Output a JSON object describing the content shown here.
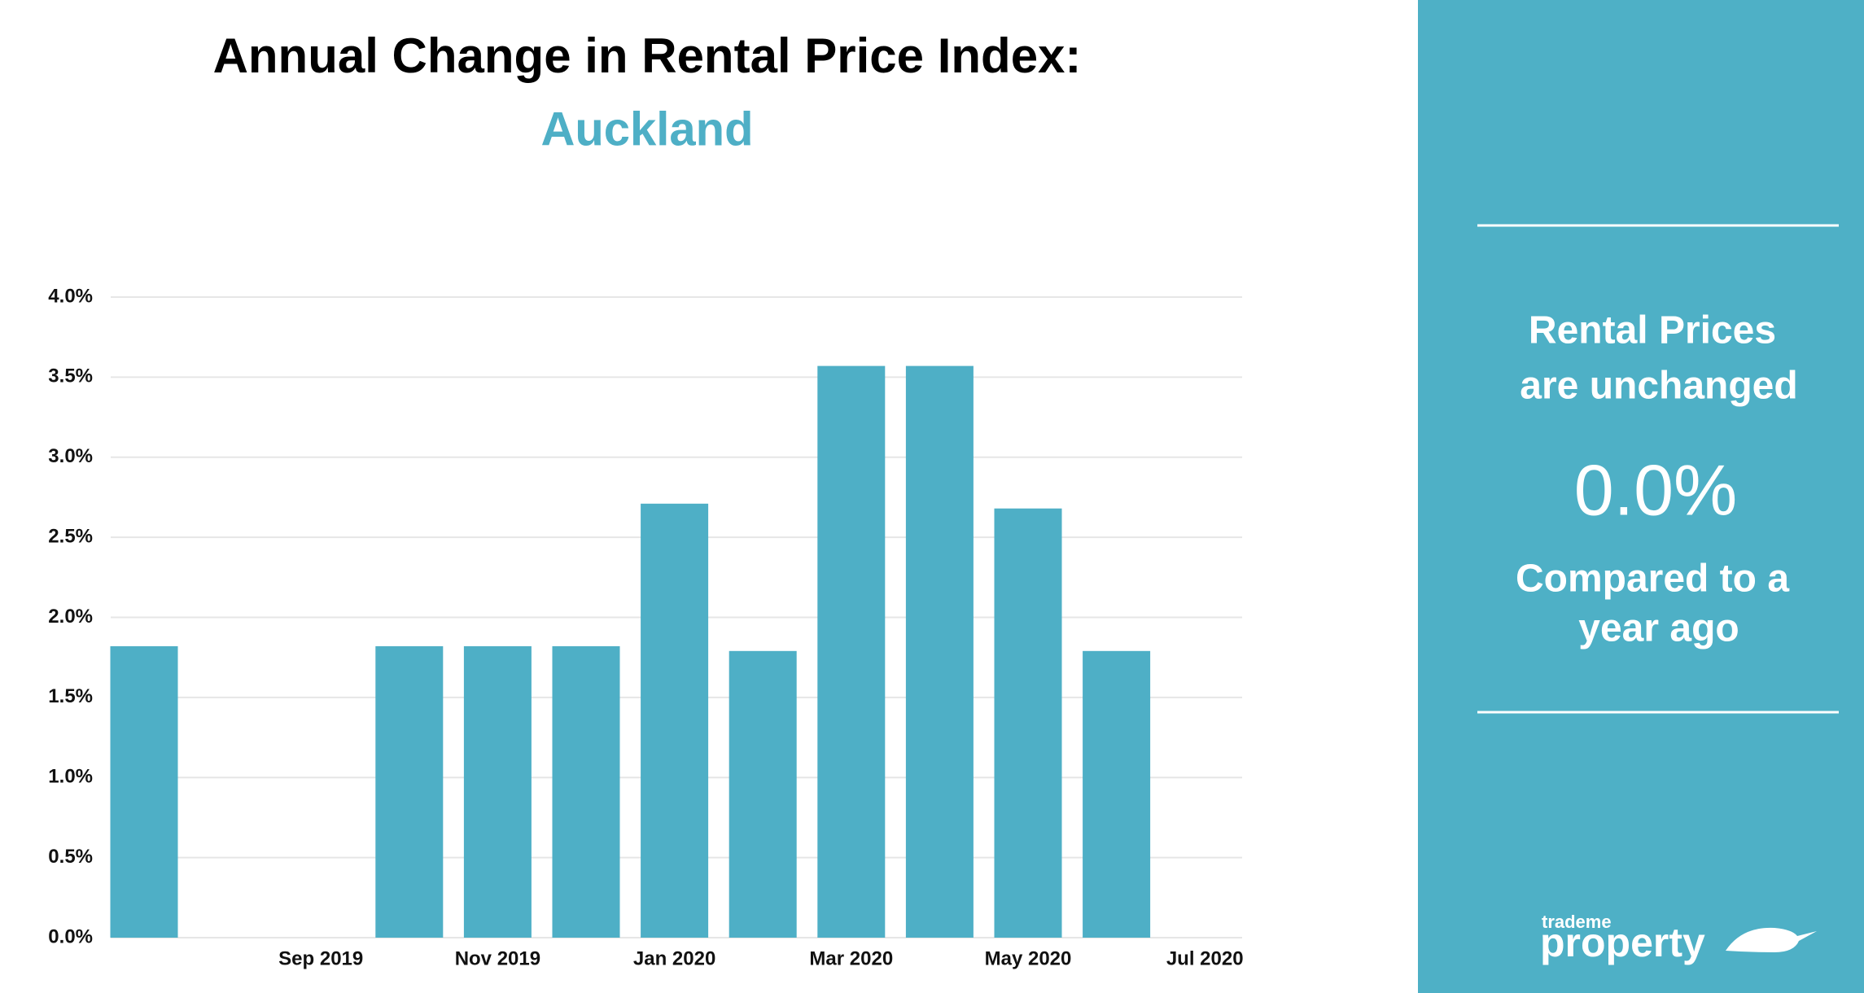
{
  "chart_data": {
    "type": "bar",
    "title": "Annual Change in Rental Price Index:",
    "subtitle": "Auckland",
    "categories": [
      null,
      null,
      "Sep 2019",
      null,
      "Nov 2019",
      null,
      "Jan 2020",
      null,
      "Mar 2020",
      null,
      "May 2020",
      null,
      "Jul 2020"
    ],
    "values": [
      1.82,
      0,
      0,
      1.82,
      1.82,
      1.82,
      2.71,
      1.79,
      3.57,
      3.57,
      2.68,
      1.79,
      0
    ],
    "color": "#4eafc6",
    "ylim": [
      0,
      4
    ],
    "yticks": [
      {
        "value": 0,
        "label": "0.0%"
      },
      {
        "value": 0.5,
        "label": "0.5%"
      },
      {
        "value": 1,
        "label": "1.0%"
      },
      {
        "value": 1.5,
        "label": "1.5%"
      },
      {
        "value": 2,
        "label": "2.0%"
      },
      {
        "value": 2.5,
        "label": "2.5%"
      },
      {
        "value": 3,
        "label": "3.0%"
      },
      {
        "value": 3.5,
        "label": "3.5%"
      },
      {
        "value": 4,
        "label": "4.0%"
      }
    ],
    "grid": true
  },
  "panel": {
    "line1": "Rental Prices",
    "line2": "are unchanged",
    "value": "0.0%",
    "line3": "Compared to a",
    "line4": "year ago"
  },
  "logo": {
    "small": "trademe",
    "large": "property"
  }
}
